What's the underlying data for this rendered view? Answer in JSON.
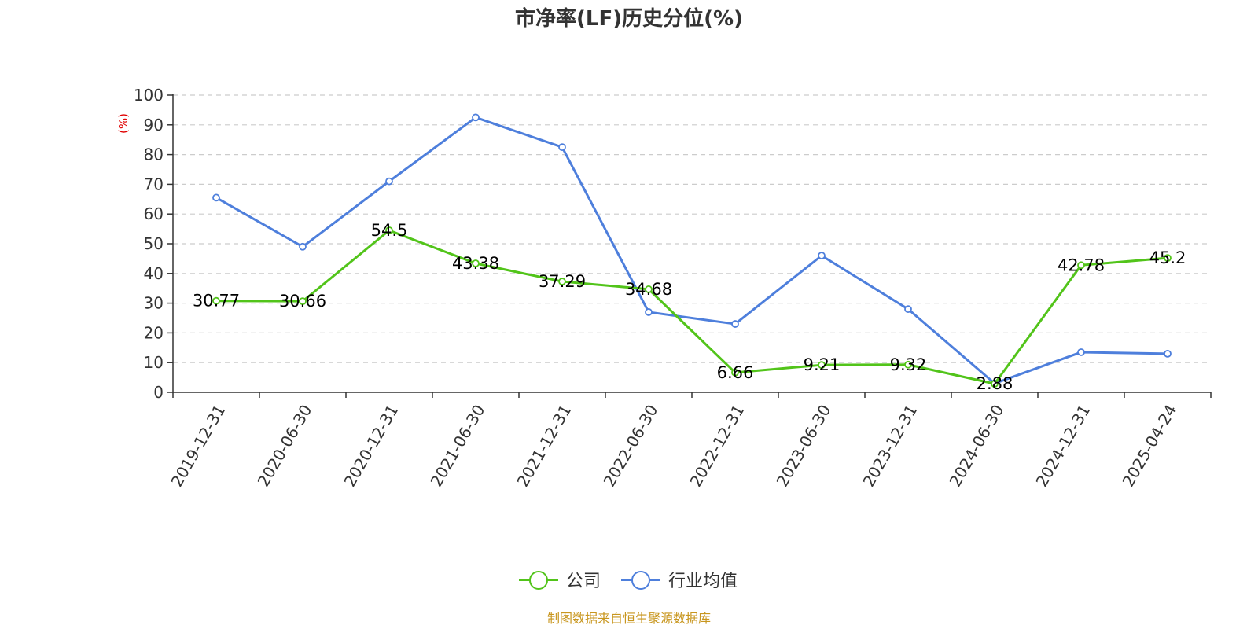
{
  "chart_data": {
    "type": "line",
    "title": "市净率(LF)历史分位(%)",
    "ylabel": "(%)",
    "xlabel": "",
    "ylim": [
      0,
      100
    ],
    "yticks": [
      0,
      10,
      20,
      30,
      40,
      50,
      60,
      70,
      80,
      90,
      100
    ],
    "grid": true,
    "legend_position": "bottom-center",
    "categories": [
      "2019-12-31",
      "2020-06-30",
      "2020-12-31",
      "2021-06-30",
      "2021-12-31",
      "2022-06-30",
      "2022-12-31",
      "2023-06-30",
      "2023-12-31",
      "2024-06-30",
      "2024-12-31",
      "2025-04-24"
    ],
    "series": [
      {
        "name": "公司",
        "color": "#52c41a",
        "values": [
          30.77,
          30.66,
          54.5,
          43.38,
          37.29,
          34.68,
          6.66,
          9.21,
          9.32,
          2.88,
          42.78,
          45.2
        ],
        "labels": [
          "30.77",
          "30.66",
          "54.5",
          "43.38",
          "37.29",
          "34.68",
          "6.66",
          "9.21",
          "9.32",
          "2.88",
          "42.78",
          "45.2"
        ]
      },
      {
        "name": "行业均值",
        "color": "#4e7fdc",
        "values": [
          65.5,
          49,
          71,
          92.5,
          82.5,
          27,
          23,
          46,
          28,
          3,
          13.5,
          13
        ]
      }
    ],
    "source": "制图数据来自恒生聚源数据库"
  }
}
